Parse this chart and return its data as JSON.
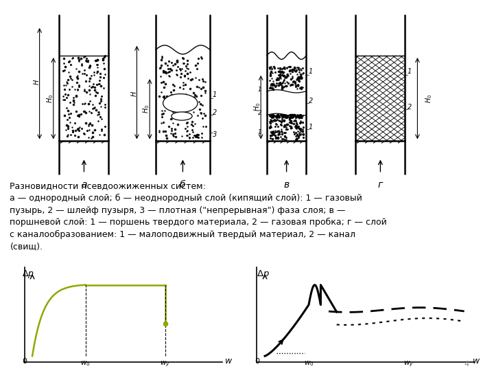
{
  "title": "Разновидности псевдоожиженных систем:",
  "description_lines": [
    "а — однородный слой; б — неоднородный слой (кипящий слой): 1 — газовый",
    "пузырь, 2 — шлейф пузыря, 3 — плотная (\"непрерывная\") фаза слоя; в —",
    "поршневой слой: 1 — поршень твердого материала, 2 — газовая пробка; г — слой",
    "с каналообразованием: 1 — малоподвижный твердый материал, 2 — канал",
    "(свищ)."
  ],
  "labels_bottom": [
    "а",
    "б",
    "в",
    "г"
  ],
  "graph1_ylabel": "Δp",
  "graph1_xlabel": "w",
  "graph2_ylabel": "Δp",
  "graph2_xlabel": "w",
  "zero_label": "0",
  "page_number": "4",
  "bg_color": "#ffffff",
  "curve1_color": "#8aaa00",
  "text_color": "#000000",
  "font_size_text": 9.0,
  "font_size_label": 9,
  "font_size_axis": 8
}
